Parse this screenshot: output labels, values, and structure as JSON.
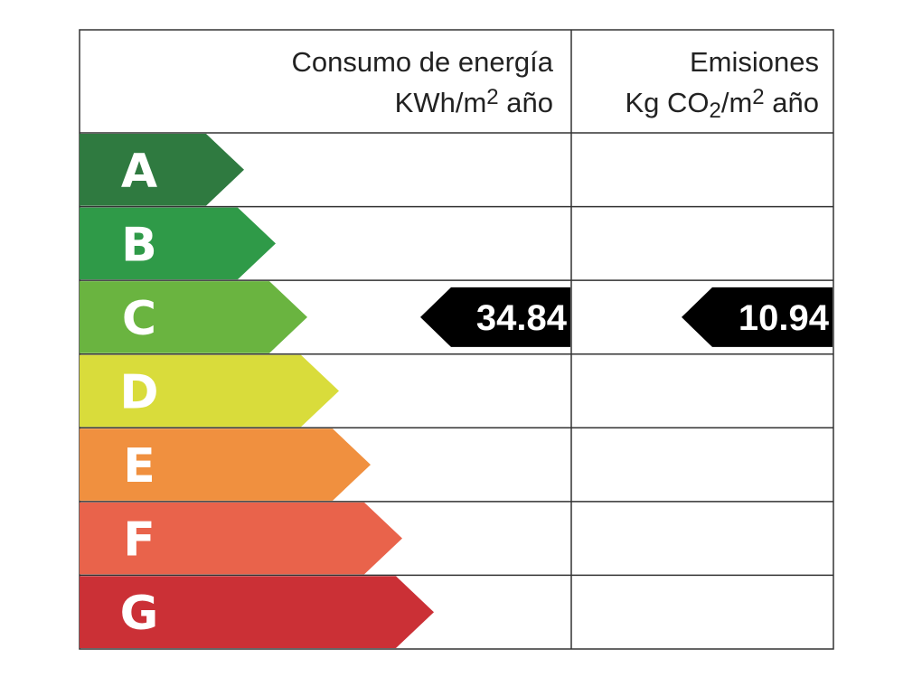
{
  "header": {
    "energy": {
      "title": "Consumo de energía",
      "unit": [
        "KWh/m",
        "2",
        " año"
      ]
    },
    "emissions": {
      "title": "Emisiones",
      "unit": [
        "Kg CO",
        "2",
        "/m",
        "2",
        " año"
      ]
    }
  },
  "rows": [
    {
      "letter": "A",
      "color": "#2f7a40"
    },
    {
      "letter": "B",
      "color": "#2f9a48"
    },
    {
      "letter": "C",
      "color": "#6ab440",
      "energy": 34.84,
      "emissions": 10.94
    },
    {
      "letter": "D",
      "color": "#d9dc3b"
    },
    {
      "letter": "E",
      "color": "#f0903f"
    },
    {
      "letter": "F",
      "color": "#e9634b"
    },
    {
      "letter": "G",
      "color": "#cb3036"
    }
  ]
}
